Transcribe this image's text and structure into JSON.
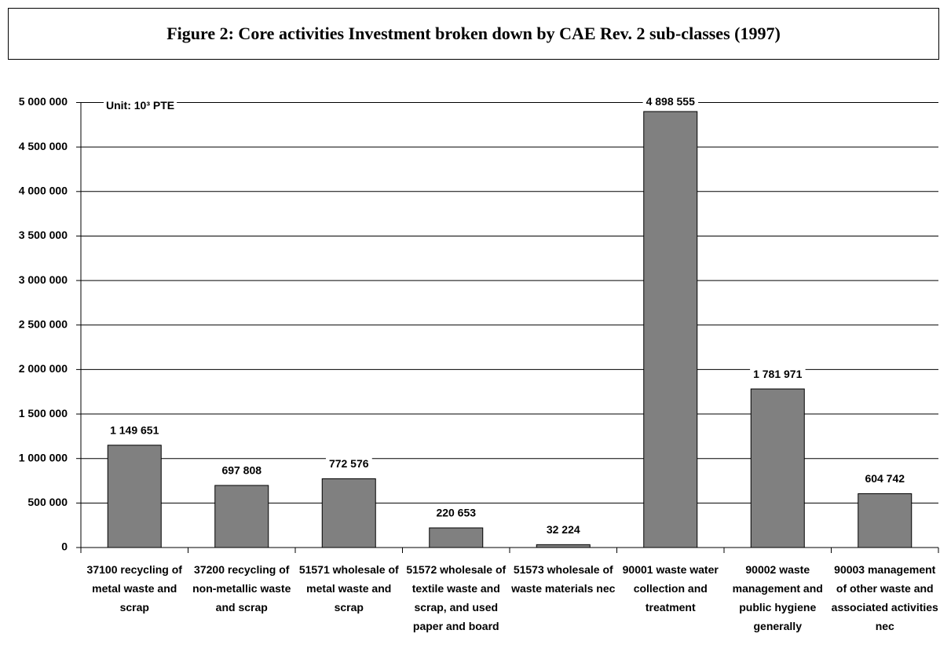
{
  "chart_data": {
    "type": "bar",
    "title": "Figure 2: Core activities Investment broken down by CAE Rev. 2 sub-classes (1997)",
    "annotation": "Unit: 10³ PTE",
    "categories": [
      "37100  recycling of metal waste and scrap",
      "37200  recycling of non-metallic waste and scrap",
      "51571 wholesale of metal waste and scrap",
      "51572 wholesale of textile waste and scrap, and used paper and board",
      "51573 wholesale of waste materials nec",
      "90001 waste water collection and treatment",
      "90002 waste management and public hygiene generally",
      "90003 management of other waste and associated activities nec"
    ],
    "values": [
      1149651,
      697808,
      772576,
      220653,
      32224,
      4898555,
      1781971,
      604742
    ],
    "value_labels": [
      "1 149 651",
      "697 808",
      "772 576",
      "220 653",
      "32 224",
      "4 898 555",
      "1 781 971",
      "604 742"
    ],
    "color": "#808080",
    "ylim": [
      0,
      5000000
    ],
    "yticks": [
      0,
      {
        "value": 500000,
        "label": "500 000"
      },
      {
        "value": 1000000,
        "label": "1 000 000"
      },
      {
        "value": 1500000,
        "label": "1 500 000"
      },
      {
        "value": 2000000,
        "label": "2 000 000"
      },
      {
        "value": 2500000,
        "label": "2 500 000"
      },
      {
        "value": 3000000,
        "label": "3 000 000"
      },
      {
        "value": 3500000,
        "label": "3 500 000"
      },
      {
        "value": 4000000,
        "label": "4 000 000"
      },
      {
        "value": 4500000,
        "label": "4 500 000"
      },
      {
        "value": 5000000,
        "label": "5 000 000"
      }
    ],
    "grid": true
  }
}
